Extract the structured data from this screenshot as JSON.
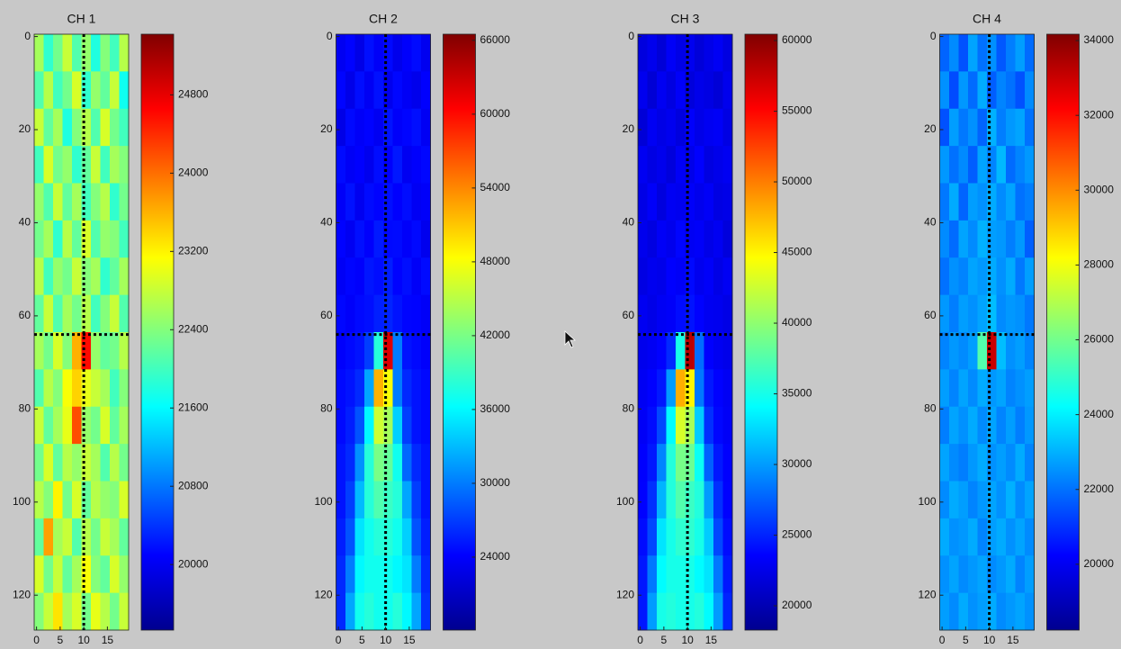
{
  "chart_data": [
    {
      "type": "heatmap",
      "title": "CH 1",
      "colormap": "jet",
      "xlim": [
        -0.5,
        19.5
      ],
      "ylim": [
        -0.5,
        127.5
      ],
      "xticks": [
        0,
        5,
        10,
        15
      ],
      "yticks": [
        0,
        20,
        40,
        60,
        80,
        100,
        120
      ],
      "clim": [
        19330,
        25420
      ],
      "cticks": [
        20000,
        20800,
        21600,
        22400,
        23200,
        24000,
        24800
      ],
      "crosshair": {
        "x": 10,
        "y": 64
      },
      "xbins": [
        -0.5,
        1.5,
        3.5,
        5.5,
        7.5,
        9.5,
        11.5,
        13.5,
        15.5,
        17.5,
        19.5
      ],
      "ybins": [
        -0.5,
        7.5,
        15.5,
        23.5,
        31.5,
        39.5,
        47.5,
        55.5,
        63.5,
        71.5,
        79.5,
        87.5,
        95.5,
        103.5,
        111.5,
        119.5,
        127.5
      ],
      "z": [
        [
          22600,
          21900,
          22300,
          22800,
          22100,
          22500,
          21800,
          22400,
          22000,
          22700
        ],
        [
          22100,
          22700,
          22000,
          22300,
          22900,
          21900,
          22500,
          22200,
          22800,
          21700
        ],
        [
          22800,
          22200,
          22600,
          21800,
          22400,
          22700,
          22100,
          22900,
          22300,
          22000
        ],
        [
          22000,
          22900,
          22300,
          22500,
          21900,
          22200,
          22800,
          22000,
          22600,
          22400
        ],
        [
          22500,
          22100,
          22800,
          22200,
          22600,
          22000,
          22400,
          22700,
          21900,
          22300
        ],
        [
          22300,
          22600,
          21900,
          22700,
          22200,
          22900,
          22100,
          22500,
          22400,
          22000
        ],
        [
          22700,
          22000,
          22500,
          22300,
          22800,
          22400,
          22600,
          21900,
          22200,
          22600
        ],
        [
          22200,
          22800,
          22100,
          22600,
          22300,
          22700,
          22000,
          22400,
          22800,
          22100
        ],
        [
          22600,
          22300,
          22900,
          22400,
          23600,
          24600,
          22500,
          22200,
          22300,
          22700
        ],
        [
          22100,
          22700,
          22400,
          23100,
          23400,
          23000,
          22800,
          22600,
          22000,
          22400
        ],
        [
          22800,
          22200,
          22600,
          23000,
          24200,
          22500,
          22300,
          22900,
          22200,
          22600
        ],
        [
          22300,
          22900,
          22200,
          22700,
          22500,
          22800,
          22600,
          22100,
          22700,
          22300
        ],
        [
          22700,
          22400,
          23200,
          22300,
          22900,
          22200,
          22700,
          22500,
          22400,
          22900
        ],
        [
          22200,
          23700,
          22600,
          22800,
          22100,
          22700,
          22300,
          22800,
          22600,
          22200
        ],
        [
          22900,
          22300,
          22800,
          22200,
          22600,
          23100,
          22400,
          22200,
          22900,
          22500
        ],
        [
          22400,
          22800,
          23300,
          22600,
          22900,
          22300,
          23000,
          22700,
          22300,
          22800
        ]
      ]
    },
    {
      "type": "heatmap",
      "title": "CH 2",
      "colormap": "jet",
      "xlim": [
        -0.5,
        19.5
      ],
      "ylim": [
        -0.5,
        127.5
      ],
      "xticks": [
        0,
        5,
        10,
        15
      ],
      "yticks": [
        0,
        20,
        40,
        60,
        80,
        100,
        120
      ],
      "clim": [
        18070,
        66500
      ],
      "cticks": [
        24000,
        30000,
        36000,
        42000,
        48000,
        54000,
        60000,
        66000
      ],
      "crosshair": {
        "x": 10,
        "y": 64
      },
      "xbins": [
        -0.5,
        1.5,
        3.5,
        5.5,
        7.5,
        9.5,
        11.5,
        13.5,
        15.5,
        17.5,
        19.5
      ],
      "ybins": [
        -0.5,
        7.5,
        15.5,
        23.5,
        31.5,
        39.5,
        47.5,
        55.5,
        63.5,
        71.5,
        79.5,
        87.5,
        95.5,
        103.5,
        111.5,
        119.5,
        127.5
      ],
      "z": [
        [
          23500,
          24200,
          23000,
          24800,
          23800,
          24500,
          23200,
          24000,
          24600,
          23400
        ],
        [
          24300,
          23100,
          24700,
          23600,
          24900,
          23300,
          24400,
          23700,
          23200,
          24100
        ],
        [
          23000,
          24500,
          23800,
          24200,
          23500,
          25000,
          23900,
          24300,
          24800,
          23600
        ],
        [
          24600,
          23700,
          24100,
          23300,
          24700,
          24000,
          25200,
          23500,
          24000,
          24400
        ],
        [
          23800,
          24900,
          23400,
          24600,
          24200,
          24800,
          24100,
          24700,
          23600,
          23900
        ],
        [
          24200,
          23500,
          24800,
          24000,
          25300,
          24500,
          24600,
          23900,
          24500,
          23300
        ],
        [
          23700,
          24300,
          24000,
          25100,
          24700,
          25500,
          24200,
          24800,
          23800,
          24600
        ],
        [
          24400,
          23900,
          24500,
          24800,
          25600,
          25800,
          25000,
          24300,
          24200,
          23800
        ],
        [
          24000,
          24500,
          25000,
          27000,
          38000,
          62000,
          30000,
          25000,
          24500,
          24000
        ],
        [
          24500,
          25000,
          26000,
          32000,
          52000,
          48000,
          30000,
          26000,
          25000,
          24500
        ],
        [
          24500,
          25500,
          28000,
          36000,
          46000,
          44000,
          34000,
          27000,
          25000,
          24500
        ],
        [
          25000,
          26000,
          31000,
          38000,
          42000,
          41000,
          37000,
          29000,
          26000,
          25000
        ],
        [
          25000,
          27000,
          33000,
          38000,
          40000,
          39000,
          38000,
          32000,
          27000,
          25000
        ],
        [
          25500,
          28000,
          35000,
          37000,
          38000,
          38000,
          37000,
          34000,
          28000,
          25500
        ],
        [
          26000,
          30000,
          36000,
          37000,
          37000,
          37000,
          36000,
          35000,
          30000,
          26000
        ],
        [
          26000,
          32000,
          37000,
          38000,
          37000,
          37000,
          38000,
          36000,
          32000,
          26500
        ]
      ]
    },
    {
      "type": "heatmap",
      "title": "CH 3",
      "colormap": "jet",
      "xlim": [
        -0.5,
        19.5
      ],
      "ylim": [
        -0.5,
        127.5
      ],
      "xticks": [
        0,
        5,
        10,
        15
      ],
      "yticks": [
        0,
        20,
        40,
        60,
        80,
        100,
        120
      ],
      "clim": [
        18280,
        60450
      ],
      "cticks": [
        20000,
        25000,
        30000,
        35000,
        40000,
        45000,
        50000,
        55000,
        60000
      ],
      "crosshair": {
        "x": 10,
        "y": 64
      },
      "xbins": [
        -0.5,
        1.5,
        3.5,
        5.5,
        7.5,
        9.5,
        11.5,
        13.5,
        15.5,
        17.5,
        19.5
      ],
      "ybins": [
        -0.5,
        7.5,
        15.5,
        23.5,
        31.5,
        39.5,
        47.5,
        55.5,
        63.5,
        71.5,
        79.5,
        87.5,
        95.5,
        103.5,
        111.5,
        119.5,
        127.5
      ],
      "z": [
        [
          22200,
          22800,
          21900,
          23200,
          22500,
          22900,
          22000,
          22600,
          23100,
          22300
        ],
        [
          22900,
          21800,
          23000,
          22300,
          23300,
          22100,
          22700,
          22400,
          21900,
          22800
        ],
        [
          21900,
          23100,
          22500,
          22900,
          22200,
          23400,
          22600,
          23000,
          23200,
          22400
        ],
        [
          23000,
          22400,
          22800,
          22100,
          23200,
          22700,
          23500,
          22300,
          22700,
          23000
        ],
        [
          22500,
          23300,
          22200,
          23100,
          22900,
          23300,
          22800,
          23200,
          22400,
          22600
        ],
        [
          22800,
          22300,
          23200,
          22800,
          23700,
          23100,
          23300,
          22600,
          23000,
          22100
        ],
        [
          22400,
          22900,
          22700,
          23500,
          23200,
          23900,
          22900,
          23300,
          22500,
          23100
        ],
        [
          23000,
          22600,
          23100,
          23300,
          24000,
          24300,
          23600,
          23000,
          22900,
          22500
        ],
        [
          22800,
          23100,
          23600,
          25200,
          35000,
          58000,
          28000,
          23500,
          23000,
          22700
        ],
        [
          23100,
          23600,
          24500,
          30000,
          48000,
          45000,
          28500,
          24500,
          23600,
          23100
        ],
        [
          23200,
          24000,
          26500,
          34000,
          43000,
          41000,
          32000,
          25500,
          23800,
          23200
        ],
        [
          23500,
          24500,
          29000,
          35500,
          39000,
          38500,
          34500,
          27500,
          24500,
          23500
        ],
        [
          23600,
          25500,
          31000,
          35500,
          37500,
          36500,
          35500,
          30000,
          25500,
          23600
        ],
        [
          24000,
          26500,
          33000,
          35000,
          36000,
          36000,
          35000,
          32000,
          26500,
          24000
        ],
        [
          24500,
          28500,
          34000,
          35000,
          35000,
          35000,
          34000,
          33000,
          28500,
          24500
        ],
        [
          24500,
          30000,
          35000,
          35500,
          35000,
          35000,
          35500,
          34000,
          30000,
          25000
        ]
      ]
    },
    {
      "type": "heatmap",
      "title": "CH 4",
      "colormap": "jet",
      "xlim": [
        -0.5,
        19.5
      ],
      "ylim": [
        -0.5,
        127.5
      ],
      "xticks": [
        0,
        5,
        10,
        15
      ],
      "yticks": [
        0,
        20,
        40,
        60,
        80,
        100,
        120
      ],
      "clim": [
        18240,
        34170
      ],
      "cticks": [
        20000,
        22000,
        24000,
        26000,
        28000,
        30000,
        32000,
        34000
      ],
      "crosshair": {
        "x": 10,
        "y": 64
      },
      "xbins": [
        -0.5,
        1.5,
        3.5,
        5.5,
        7.5,
        9.5,
        11.5,
        13.5,
        15.5,
        17.5,
        19.5
      ],
      "ybins": [
        -0.5,
        7.5,
        15.5,
        23.5,
        31.5,
        39.5,
        47.5,
        55.5,
        63.5,
        71.5,
        79.5,
        87.5,
        95.5,
        103.5,
        111.5,
        119.5,
        127.5
      ],
      "z": [
        [
          21800,
          22400,
          21500,
          22800,
          22000,
          22500,
          21600,
          22200,
          22700,
          21900
        ],
        [
          22500,
          21400,
          22600,
          21900,
          22900,
          21700,
          22300,
          22000,
          21500,
          22400
        ],
        [
          21500,
          22700,
          22100,
          22500,
          21800,
          23000,
          22200,
          22600,
          22800,
          22000
        ],
        [
          22600,
          22000,
          22400,
          21700,
          22800,
          22300,
          23100,
          21900,
          22300,
          22600
        ],
        [
          22100,
          22900,
          21800,
          22700,
          22500,
          22900,
          22400,
          22800,
          22000,
          22200
        ],
        [
          22400,
          21900,
          22800,
          22400,
          23000,
          22700,
          22600,
          22200,
          22600,
          21700
        ],
        [
          22000,
          22500,
          22300,
          22800,
          22600,
          22900,
          22500,
          22900,
          22100,
          22700
        ],
        [
          22600,
          22200,
          22700,
          22500,
          22800,
          23200,
          22400,
          22600,
          22500,
          22100
        ],
        [
          22300,
          22600,
          22400,
          22700,
          25500,
          33000,
          23200,
          22500,
          22700,
          22300
        ],
        [
          22700,
          22300,
          22800,
          22400,
          22900,
          22600,
          22800,
          22300,
          22500,
          22700
        ],
        [
          22200,
          22800,
          22500,
          22900,
          22400,
          22800,
          22300,
          22700,
          22200,
          22600
        ],
        [
          22800,
          22400,
          22200,
          22600,
          22900,
          22500,
          22700,
          22400,
          22900,
          22300
        ],
        [
          22400,
          22900,
          22700,
          22300,
          22600,
          22800,
          22500,
          23000,
          22400,
          22800
        ],
        [
          22900,
          22500,
          22600,
          22900,
          22300,
          22700,
          22900,
          22500,
          22800,
          22400
        ],
        [
          22500,
          22800,
          22400,
          22600,
          22800,
          22400,
          22600,
          22900,
          22300,
          22700
        ],
        [
          22700,
          22400,
          22900,
          22500,
          22700,
          22900,
          22400,
          22600,
          22800,
          22500
        ]
      ]
    }
  ]
}
